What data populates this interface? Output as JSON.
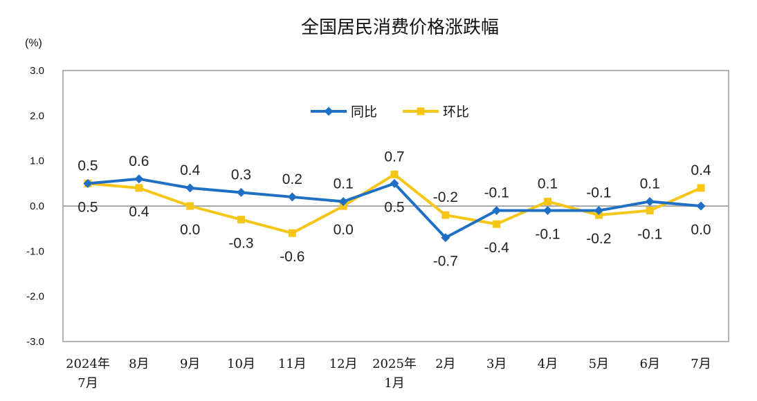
{
  "chart_data": {
    "type": "line",
    "title": "全国居民消费价格涨跌幅",
    "unit_label": "(%)",
    "ylim": [
      -3.0,
      3.0
    ],
    "y_ticks": [
      "3.0",
      "2.0",
      "1.0",
      "0.0",
      "-1.0",
      "-2.0",
      "-3.0"
    ],
    "categories": [
      [
        "2024年",
        "7月"
      ],
      [
        "8月"
      ],
      [
        "9月"
      ],
      [
        "10月"
      ],
      [
        "11月"
      ],
      [
        "12月"
      ],
      [
        "2025年",
        "1月"
      ],
      [
        "2月"
      ],
      [
        "3月"
      ],
      [
        "4月"
      ],
      [
        "5月"
      ],
      [
        "6月"
      ],
      [
        "7月"
      ]
    ],
    "legend_position": "top-center",
    "series": [
      {
        "name": "同比",
        "color": "#1f6fc5",
        "marker": "diamond",
        "values": [
          0.5,
          0.6,
          0.4,
          0.3,
          0.2,
          0.1,
          0.5,
          -0.7,
          -0.1,
          -0.1,
          -0.1,
          0.1,
          0.0
        ],
        "labels": [
          "0.5",
          "0.6",
          "0.4",
          "0.3",
          "0.2",
          "0.1",
          "0.5",
          "-0.7",
          "-0.1",
          "-0.1",
          "-0.1",
          "0.1",
          "0.0"
        ]
      },
      {
        "name": "环比",
        "color": "#f5c518",
        "marker": "square",
        "values": [
          0.5,
          0.4,
          0.0,
          -0.3,
          -0.6,
          0.0,
          0.7,
          -0.2,
          -0.4,
          0.1,
          -0.2,
          -0.1,
          0.4
        ],
        "labels": [
          "0.5",
          "0.4",
          "0.0",
          "-0.3",
          "-0.6",
          "0.0",
          "0.7",
          "-0.2",
          "-0.4",
          "0.1",
          "-0.2",
          "-0.1",
          "0.4"
        ]
      }
    ]
  }
}
